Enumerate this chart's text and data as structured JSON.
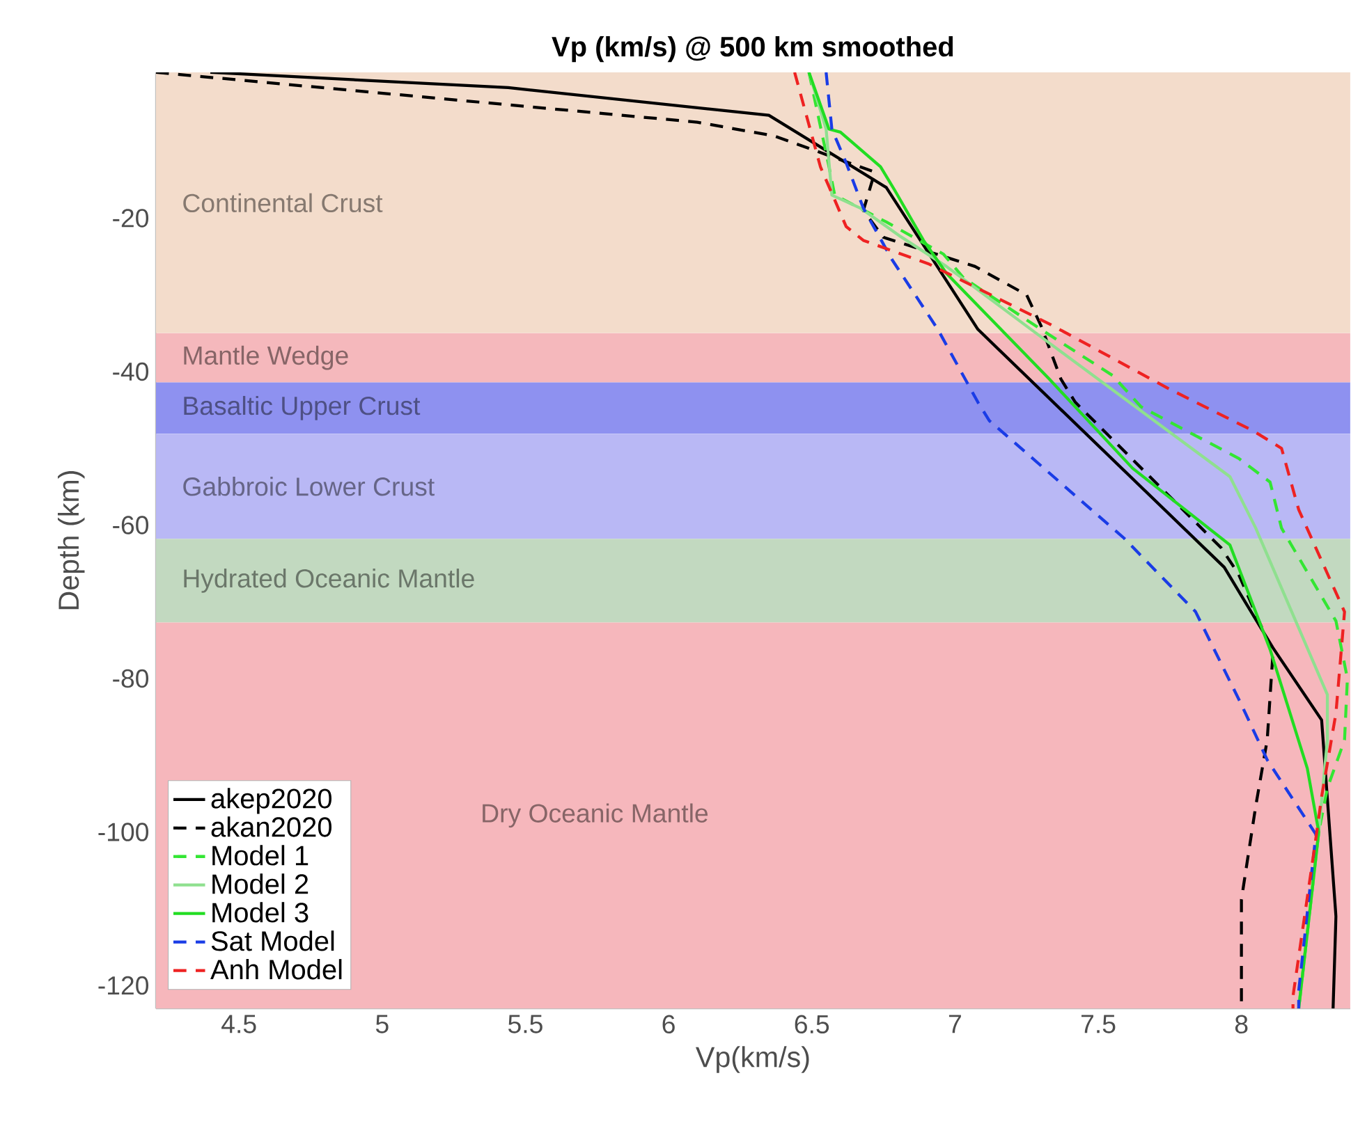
{
  "chart_data": {
    "type": "line",
    "title": "Vp (km/s) @ 500 km smoothed",
    "xlabel": "Vp(km/s)",
    "ylabel": "Depth (km)",
    "xlim": [
      4.21,
      8.38
    ],
    "ylim": [
      -123,
      -1
    ],
    "xticks": [
      4.5,
      5,
      5.5,
      6,
      6.5,
      7,
      7.5,
      8
    ],
    "yticks": [
      -120,
      -100,
      -80,
      -60,
      -40,
      -20
    ],
    "grid": false,
    "legend": "bottom left",
    "marker": "none",
    "bands": [
      {
        "axis": "y",
        "from": -1,
        "to": -35,
        "label": "Continental Crust",
        "color": "#f3dccb"
      },
      {
        "axis": "y",
        "from": -35,
        "to": -41.4,
        "label": "Mantle Wedge",
        "color": "#f5b8bc"
      },
      {
        "axis": "y",
        "from": -41.4,
        "to": -48.1,
        "label": "Basaltic Upper Crust",
        "color": "#8e91f0"
      },
      {
        "axis": "y",
        "from": -48.1,
        "to": -61.8,
        "label": "Gabbroic Lower Crust",
        "color": "#b9b8f5"
      },
      {
        "axis": "y",
        "from": -61.8,
        "to": -72.7,
        "label": "Hydrated Oceanic Mantle",
        "color": "#c2d9c0"
      },
      {
        "axis": "y",
        "from": -72.7,
        "to": -123,
        "label": "Dry Oceanic Mantle",
        "color": "#f6b7bc"
      }
    ],
    "series": [
      {
        "name": "akep2020",
        "color": "#000000",
        "line_style": "solid",
        "x": [
          4.4,
          5.44,
          6.35,
          6.76,
          7.08,
          7.94,
          8.11,
          8.28,
          8.33,
          8.32
        ],
        "values": [
          -1,
          -3,
          -6.6,
          -16,
          -34.5,
          -65.5,
          -76,
          -85.4,
          -111,
          -123
        ]
      },
      {
        "name": "akan2020",
        "color": "#000000",
        "line_style": "dashed",
        "x": [
          4.21,
          6.1,
          6.37,
          6.72,
          6.68,
          6.75,
          7.07,
          7.25,
          7.3,
          7.37,
          7.42,
          7.93,
          7.99,
          8.11,
          8.09,
          8.05,
          8.0,
          8.0
        ],
        "values": [
          -1,
          -7.5,
          -9.3,
          -14,
          -19,
          -22.5,
          -26.3,
          -30,
          -34,
          -41,
          -44,
          -63,
          -66.4,
          -76.7,
          -88,
          -96.6,
          -108.8,
          -123
        ]
      },
      {
        "name": "Model 1",
        "color": "#33e633",
        "line_style": "dashed",
        "x": [
          6.49,
          6.56,
          6.58,
          6.76,
          6.96,
          7.03,
          7.3,
          7.55,
          7.65,
          7.99,
          8.1,
          8.14,
          8.33,
          8.37,
          8.36,
          8.3,
          8.27,
          8.2
        ],
        "values": [
          -1,
          -13.3,
          -17,
          -20.5,
          -24.7,
          -27.8,
          -34.5,
          -40.5,
          -44.6,
          -51.3,
          -54.4,
          -60.4,
          -72.5,
          -80,
          -88,
          -94.3,
          -100,
          -123
        ]
      },
      {
        "name": "Model 2",
        "color": "#8fe08f",
        "line_style": "solid",
        "x": [
          6.49,
          6.55,
          6.57,
          6.67,
          6.81,
          6.97,
          7.33,
          7.96,
          8.05,
          8.3,
          8.3,
          8.27,
          8.2
        ],
        "values": [
          -1,
          -8.4,
          -17,
          -18.7,
          -22.4,
          -26.3,
          -36.3,
          -53.7,
          -60.4,
          -82.1,
          -88,
          -100,
          -123
        ]
      },
      {
        "name": "Model 3",
        "color": "#22dd22",
        "line_style": "solid",
        "x": [
          6.49,
          6.56,
          6.6,
          6.74,
          6.79,
          6.89,
          6.97,
          7.33,
          7.62,
          7.96,
          8.1,
          8.23,
          8.27,
          8.2
        ],
        "values": [
          -1,
          -8.4,
          -8.8,
          -13.3,
          -16.4,
          -22.9,
          -27.2,
          -41,
          -52.6,
          -62.6,
          -76.2,
          -91.7,
          -100,
          -123
        ]
      },
      {
        "name": "Sat Model",
        "color": "#1a3ce6",
        "line_style": "dashed",
        "x": [
          6.55,
          6.57,
          6.62,
          6.68,
          6.78,
          6.94,
          7.08,
          7.12,
          7.59,
          7.84,
          8.0,
          8.09,
          8.26,
          8.2,
          8.2
        ],
        "values": [
          -1,
          -8.4,
          -12.8,
          -18.7,
          -25.4,
          -34.5,
          -44,
          -46.4,
          -61.7,
          -71.3,
          -83.4,
          -90.6,
          -100.3,
          -120.7,
          -123
        ]
      },
      {
        "name": "Anh Model",
        "color": "#ee2222",
        "line_style": "dashed",
        "x": [
          6.44,
          6.53,
          6.62,
          6.68,
          6.91,
          7.33,
          7.75,
          8.04,
          8.14,
          8.2,
          8.36,
          8.33,
          8.28,
          8.26,
          8.18,
          8.18
        ],
        "values": [
          -1,
          -13.3,
          -21.1,
          -22.9,
          -26,
          -33.8,
          -42.3,
          -47.7,
          -50,
          -58,
          -71.3,
          -84.5,
          -95.4,
          -100.8,
          -121.4,
          -123
        ]
      }
    ]
  }
}
